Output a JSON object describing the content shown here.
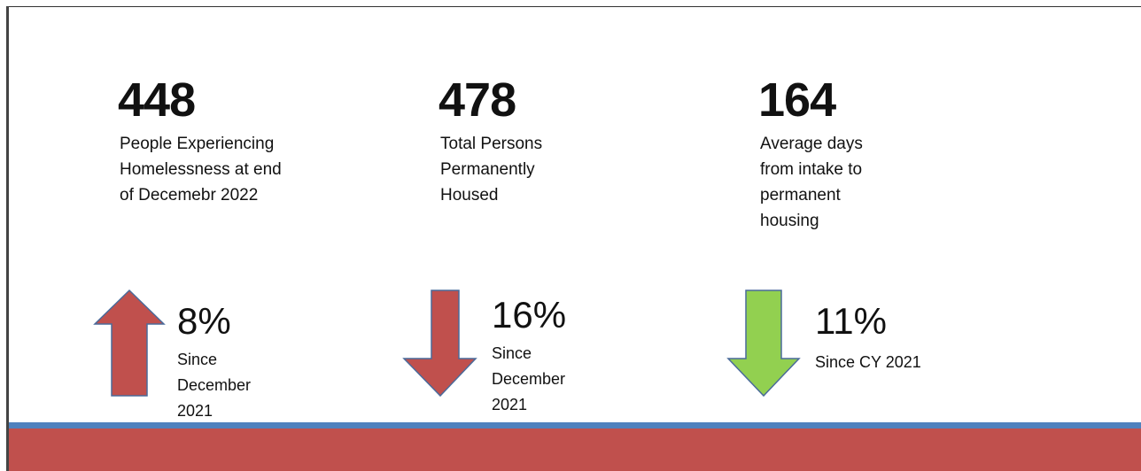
{
  "stats": [
    {
      "number": "448",
      "description": [
        "People Experiencing",
        "Homelessness at end",
        "of Decemebr 2022"
      ],
      "change": "8%",
      "since": [
        "Since",
        "December",
        "2021"
      ]
    },
    {
      "number": "478",
      "description": [
        "Total Persons",
        "Permanently",
        "Housed"
      ],
      "change": "16%",
      "since": [
        "Since",
        "December",
        "2021"
      ]
    },
    {
      "number": "164",
      "description": [
        "Average days",
        "from intake to",
        "permanent",
        "housing"
      ],
      "change": "11%",
      "since": [
        "Since CY 2021"
      ]
    }
  ]
}
